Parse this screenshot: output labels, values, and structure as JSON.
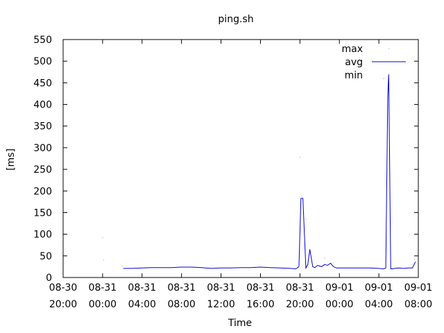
{
  "chart_data": {
    "type": "line",
    "title": "ping.sh",
    "xlabel": "Time",
    "ylabel": "[ms]",
    "xlim": [
      0,
      36
    ],
    "ylim": [
      0,
      550
    ],
    "yticks": [
      0,
      50,
      100,
      150,
      200,
      250,
      300,
      350,
      400,
      450,
      500,
      550
    ],
    "xticks": [
      {
        "x": 0,
        "line1": "08-30",
        "line2": "20:00"
      },
      {
        "x": 4,
        "line1": "08-31",
        "line2": "00:00"
      },
      {
        "x": 8,
        "line1": "08-31",
        "line2": "04:00"
      },
      {
        "x": 12,
        "line1": "08-31",
        "line2": "08:00"
      },
      {
        "x": 16,
        "line1": "08-31",
        "line2": "12:00"
      },
      {
        "x": 20,
        "line1": "08-31",
        "line2": "16:00"
      },
      {
        "x": 24,
        "line1": "08-31",
        "line2": "20:00"
      },
      {
        "x": 28,
        "line1": "09-01",
        "line2": "00:00"
      },
      {
        "x": 32,
        "line1": "09-01",
        "line2": "04:00"
      },
      {
        "x": 36,
        "line1": "09-01",
        "line2": "08:00"
      }
    ],
    "legend_position": "top-right",
    "series": [
      {
        "name": "max",
        "color": "#888888",
        "style": "dots",
        "x": [
          4.0,
          4.1,
          6.0,
          24.0,
          24.6,
          26.5,
          32.5,
          35.6
        ],
        "values": [
          92,
          40,
          26,
          278,
          135,
          45,
          460,
          42
        ]
      },
      {
        "name": "avg",
        "color": "#0000cc",
        "style": "line",
        "x": [
          6.1,
          7,
          8,
          9,
          10,
          11,
          12,
          13,
          14,
          15,
          16,
          17,
          18,
          19,
          20,
          21,
          22,
          23,
          23.6,
          23.9,
          24.1,
          24.3,
          24.6,
          24.8,
          25.0,
          25.3,
          25.5,
          25.8,
          26.2,
          26.5,
          26.8,
          27.1,
          27.4,
          27.7,
          28,
          29,
          30,
          31,
          32,
          32.5,
          32.7,
          32.9,
          33.0,
          33.2,
          33.4,
          33.6,
          34,
          34.5,
          35,
          35.4,
          35.7
        ],
        "values": [
          21,
          21,
          22,
          23,
          23,
          23,
          24,
          24,
          23,
          21,
          22,
          22,
          23,
          23,
          24,
          23,
          22,
          21,
          20,
          25,
          183,
          183,
          22,
          30,
          65,
          25,
          23,
          28,
          25,
          30,
          28,
          33,
          25,
          22,
          22,
          22,
          22,
          22,
          21,
          20,
          22,
          420,
          470,
          20,
          20,
          21,
          22,
          21,
          22,
          22,
          36
        ]
      },
      {
        "name": "min",
        "color": "#cc6600",
        "style": "dots",
        "x": [],
        "values": []
      }
    ]
  }
}
